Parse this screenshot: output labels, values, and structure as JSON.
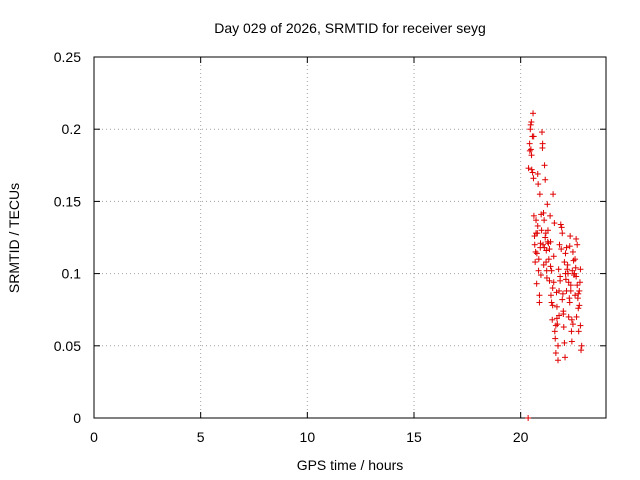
{
  "chart_data": {
    "type": "scatter",
    "title": "Day 029 of 2026, SRMTID for receiver seyg",
    "xlabel": "GPS time / hours",
    "ylabel": "SRMTID / TECUs",
    "xlim": [
      0,
      24
    ],
    "ylim": [
      0,
      0.25
    ],
    "xticks": [
      "0",
      "5",
      "10",
      "15",
      "20"
    ],
    "yticks": [
      "0",
      "0.05",
      "0.1",
      "0.15",
      "0.2",
      "0.25"
    ],
    "grid": true,
    "marker": "plus",
    "color": "#e00000",
    "series": [
      {
        "name": "SRMTID",
        "x": [
          20.35,
          20.37,
          20.42,
          20.45,
          20.48,
          20.5,
          20.52,
          20.55,
          20.58,
          20.6,
          20.62,
          20.65,
          20.43,
          20.47,
          20.51,
          20.56,
          20.61,
          20.66,
          20.7,
          20.72,
          20.75,
          20.78,
          20.8,
          20.82,
          20.85,
          20.88,
          20.9,
          20.93,
          20.95,
          20.98,
          20.68,
          20.72,
          20.76,
          20.8,
          20.84,
          20.88,
          20.92,
          20.96,
          21.0,
          21.02,
          21.05,
          21.08,
          21.1,
          21.12,
          21.15,
          21.18,
          21.2,
          21.22,
          21.25,
          21.28,
          21.3,
          21.03,
          21.07,
          21.11,
          21.15,
          21.19,
          21.23,
          21.27,
          21.32,
          21.35,
          21.38,
          21.4,
          21.42,
          21.45,
          21.48,
          21.5,
          21.52,
          21.55,
          21.58,
          21.6,
          21.35,
          21.4,
          21.45,
          21.5,
          21.55,
          21.62,
          21.65,
          21.68,
          21.7,
          21.72,
          21.75,
          21.78,
          21.8,
          21.82,
          21.85,
          21.88,
          21.9,
          21.65,
          21.7,
          21.75,
          21.8,
          21.85,
          21.92,
          21.95,
          21.98,
          22.0,
          22.02,
          22.05,
          22.08,
          22.1,
          22.12,
          22.15,
          22.18,
          22.2,
          21.95,
          22.0,
          22.05,
          22.1,
          22.15,
          22.22,
          22.25,
          22.28,
          22.3,
          22.32,
          22.35,
          22.38,
          22.4,
          22.42,
          22.45,
          22.48,
          22.5,
          22.25,
          22.3,
          22.35,
          22.4,
          22.45,
          22.52,
          22.55,
          22.58,
          22.6,
          22.62,
          22.65,
          22.68,
          22.7,
          22.72,
          22.75,
          22.78,
          22.8,
          22.83,
          22.86,
          22.55,
          22.6,
          22.65,
          22.7,
          22.75,
          22.8
        ],
        "y": [
          0.0,
          0.173,
          0.19,
          0.2,
          0.186,
          0.205,
          0.172,
          0.195,
          0.211,
          0.166,
          0.14,
          0.126,
          0.185,
          0.203,
          0.182,
          0.17,
          0.195,
          0.12,
          0.115,
          0.137,
          0.093,
          0.128,
          0.169,
          0.162,
          0.11,
          0.085,
          0.155,
          0.121,
          0.099,
          0.13,
          0.108,
          0.128,
          0.114,
          0.133,
          0.102,
          0.08,
          0.118,
          0.141,
          0.198,
          0.187,
          0.12,
          0.106,
          0.137,
          0.175,
          0.165,
          0.128,
          0.116,
          0.102,
          0.148,
          0.13,
          0.121,
          0.19,
          0.142,
          0.118,
          0.125,
          0.108,
          0.097,
          0.122,
          0.11,
          0.095,
          0.14,
          0.122,
          0.085,
          0.102,
          0.068,
          0.078,
          0.155,
          0.094,
          0.135,
          0.06,
          0.117,
          0.105,
          0.08,
          0.09,
          0.112,
          0.055,
          0.045,
          0.087,
          0.077,
          0.065,
          0.04,
          0.103,
          0.071,
          0.12,
          0.098,
          0.134,
          0.117,
          0.064,
          0.069,
          0.05,
          0.088,
          0.095,
          0.132,
          0.128,
          0.086,
          0.072,
          0.063,
          0.052,
          0.042,
          0.114,
          0.096,
          0.118,
          0.103,
          0.106,
          0.082,
          0.074,
          0.108,
          0.1,
          0.088,
          0.1,
          0.094,
          0.083,
          0.119,
          0.126,
          0.088,
          0.06,
          0.053,
          0.102,
          0.115,
          0.109,
          0.099,
          0.07,
          0.08,
          0.092,
          0.068,
          0.065,
          0.1,
          0.085,
          0.104,
          0.124,
          0.07,
          0.092,
          0.083,
          0.076,
          0.06,
          0.088,
          0.094,
          0.103,
          0.047,
          0.05,
          0.11,
          0.098,
          0.12,
          0.086,
          0.078,
          0.064
        ]
      }
    ]
  }
}
